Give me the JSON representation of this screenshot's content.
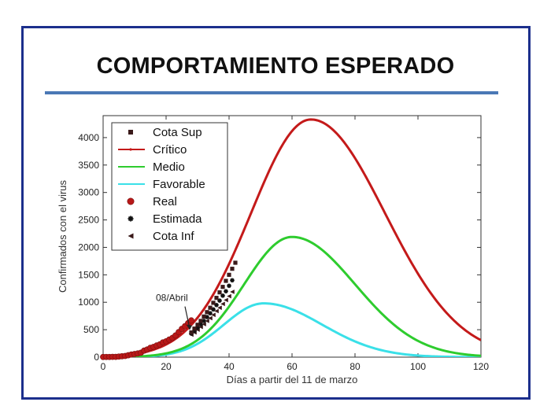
{
  "page": {
    "title": "COMPORTAMIENTO ESPERADO"
  },
  "colors": {
    "frame": "#1c2f8c",
    "rule": "#4a78b5"
  },
  "chart_data": {
    "type": "line",
    "xlabel": "Días a partir del 11 de marzo",
    "ylabel": "Confirmados con el virus",
    "xlim": [
      0,
      120
    ],
    "ylim": [
      0,
      4400
    ],
    "xticks": [
      0,
      20,
      40,
      60,
      80,
      100,
      120
    ],
    "yticks": [
      0,
      500,
      1000,
      1500,
      2000,
      2500,
      3000,
      3500,
      4000
    ],
    "legend_position": "top-left",
    "annotation": {
      "text": "08/Abril",
      "x": 28,
      "y": 450
    },
    "series": [
      {
        "name": "Cota Sup",
        "kind": "markers",
        "marker": "square",
        "color": "#3a1a1a",
        "x": [
          28,
          29,
          30,
          31,
          32,
          33,
          34,
          35,
          36,
          37,
          38,
          39,
          40,
          41,
          42
        ],
        "y": [
          450,
          520,
          590,
          660,
          740,
          820,
          900,
          990,
          1080,
          1180,
          1280,
          1390,
          1500,
          1610,
          1720
        ]
      },
      {
        "name": "Crítico",
        "kind": "line",
        "color": "#c41a1a",
        "peak_x": 66,
        "peak_y": 4330,
        "sigma_left": 19,
        "sigma_right": 23.5
      },
      {
        "name": "Medio",
        "kind": "line",
        "color": "#2ecc2e",
        "peak_x": 60,
        "peak_y": 2190,
        "sigma_left": 15.2,
        "sigma_right": 20
      },
      {
        "name": "Favorable",
        "kind": "line",
        "color": "#3ae0e8",
        "peak_x": 51,
        "peak_y": 980,
        "sigma_left": 12.6,
        "sigma_right": 18.5
      },
      {
        "name": "Real",
        "kind": "markers",
        "marker": "circle",
        "color": "#b81818",
        "x": [
          0,
          1,
          2,
          3,
          4,
          5,
          6,
          7,
          8,
          9,
          10,
          11,
          12,
          13,
          14,
          15,
          16,
          17,
          18,
          19,
          20,
          21,
          22,
          23,
          24,
          25,
          26,
          27,
          28
        ],
        "y": [
          3,
          4,
          4,
          5,
          5,
          11,
          16,
          21,
          35,
          48,
          57,
          67,
          80,
          119,
          139,
          170,
          186,
          212,
          233,
          269,
          288,
          320,
          350,
          396,
          457,
          515,
          564,
          620,
          669
        ]
      },
      {
        "name": "Estimada",
        "kind": "markers",
        "marker": "star",
        "color": "#111111",
        "x": [
          28,
          29,
          30,
          31,
          32,
          33,
          34,
          35,
          36,
          37,
          38,
          39,
          40,
          41
        ],
        "y": [
          430,
          480,
          540,
          600,
          660,
          730,
          800,
          870,
          950,
          1030,
          1120,
          1200,
          1300,
          1400
        ]
      },
      {
        "name": "Cota Inf",
        "kind": "markers",
        "marker": "triangle-left",
        "color": "#3a1a1a",
        "x": [
          28,
          29,
          30,
          31,
          32,
          33,
          34,
          35,
          36,
          37,
          38,
          39,
          40,
          41
        ],
        "y": [
          410,
          450,
          500,
          550,
          600,
          660,
          710,
          770,
          840,
          900,
          970,
          1040,
          1110,
          1190
        ]
      }
    ]
  }
}
